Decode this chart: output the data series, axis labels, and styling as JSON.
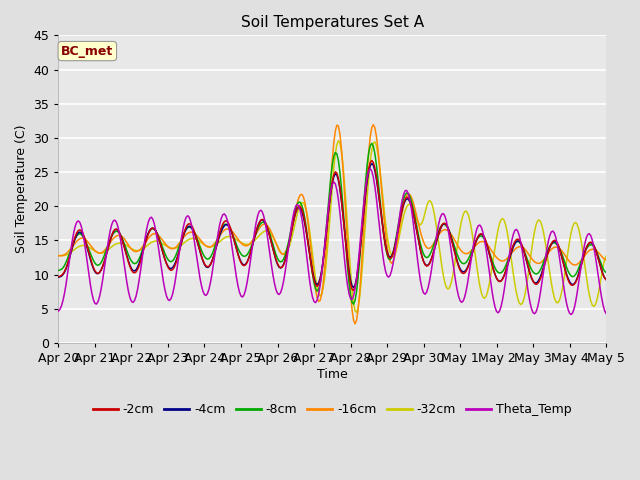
{
  "title": "Soil Temperatures Set A",
  "xlabel": "Time",
  "ylabel": "Soil Temperature (C)",
  "ylim": [
    0,
    45
  ],
  "annotation": "BC_met",
  "legend_entries": [
    "-2cm",
    "-4cm",
    "-8cm",
    "-16cm",
    "-32cm",
    "Theta_Temp"
  ],
  "line_colors": [
    "#cc0000",
    "#000088",
    "#00aa00",
    "#ff8800",
    "#cccc00",
    "#bb00bb"
  ],
  "background_color": "#e0e0e0",
  "plot_bg_color": "#e8e8e8",
  "grid_color": "#ffffff",
  "x_tick_labels": [
    "Apr 20",
    "Apr 21",
    "Apr 22",
    "Apr 23",
    "Apr 24",
    "Apr 25",
    "Apr 26",
    "Apr 27",
    "Apr 28",
    "Apr 29",
    "Apr 30",
    "May 1",
    "May 2",
    "May 3",
    "May 4",
    "May 5"
  ],
  "figsize": [
    6.4,
    4.8
  ],
  "dpi": 100
}
